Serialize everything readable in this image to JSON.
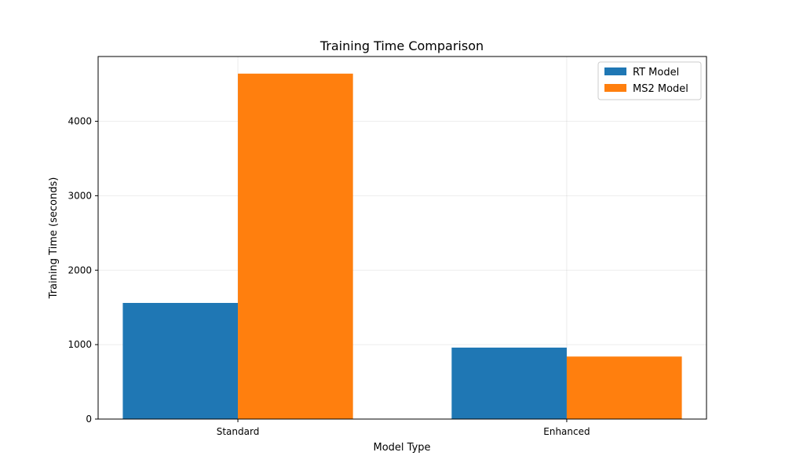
{
  "chart_data": {
    "type": "bar",
    "title": "Training Time Comparison",
    "xlabel": "Model Type",
    "ylabel": "Training Time (seconds)",
    "categories": [
      "Standard",
      "Enhanced"
    ],
    "series": [
      {
        "name": "RT Model",
        "color": "#1f77b4",
        "values": [
          1560,
          960
        ]
      },
      {
        "name": "MS2 Model",
        "color": "#ff7f0e",
        "values": [
          4640,
          840
        ]
      }
    ],
    "ylim": [
      0,
      4870
    ],
    "yticks": [
      0,
      1000,
      2000,
      3000,
      4000
    ],
    "grid": true,
    "legend_position": "top-right"
  }
}
